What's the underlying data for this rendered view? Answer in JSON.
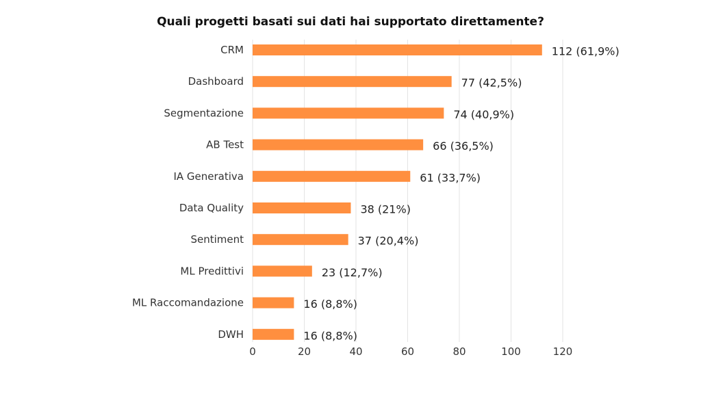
{
  "chart_data": {
    "type": "bar",
    "orientation": "horizontal",
    "title": "Quali progetti basati sui dati hai supportato direttamente?",
    "categories": [
      "CRM",
      "Dashboard",
      "Segmentazione",
      "AB Test",
      "IA Generativa",
      "Data Quality",
      "Sentiment",
      "ML Predittivi",
      "ML Raccomandazione",
      "DWH"
    ],
    "values": [
      112,
      77,
      74,
      66,
      61,
      38,
      37,
      23,
      16,
      16
    ],
    "data_labels": [
      "112 (61,9%)",
      "77 (42,5%)",
      "74 (40,9%)",
      "66 (36,5%)",
      "61 (33,7%)",
      "38 (21%)",
      "37 (20,4%)",
      "23 (12,7%)",
      "16 (8,8%)",
      "16 (8,8%)"
    ],
    "x_ticks": [
      0,
      20,
      40,
      60,
      80,
      100,
      120
    ],
    "xlim": [
      0,
      120
    ],
    "grid": "vertical",
    "legend": "none",
    "bar_color": "#FF8F3F"
  }
}
